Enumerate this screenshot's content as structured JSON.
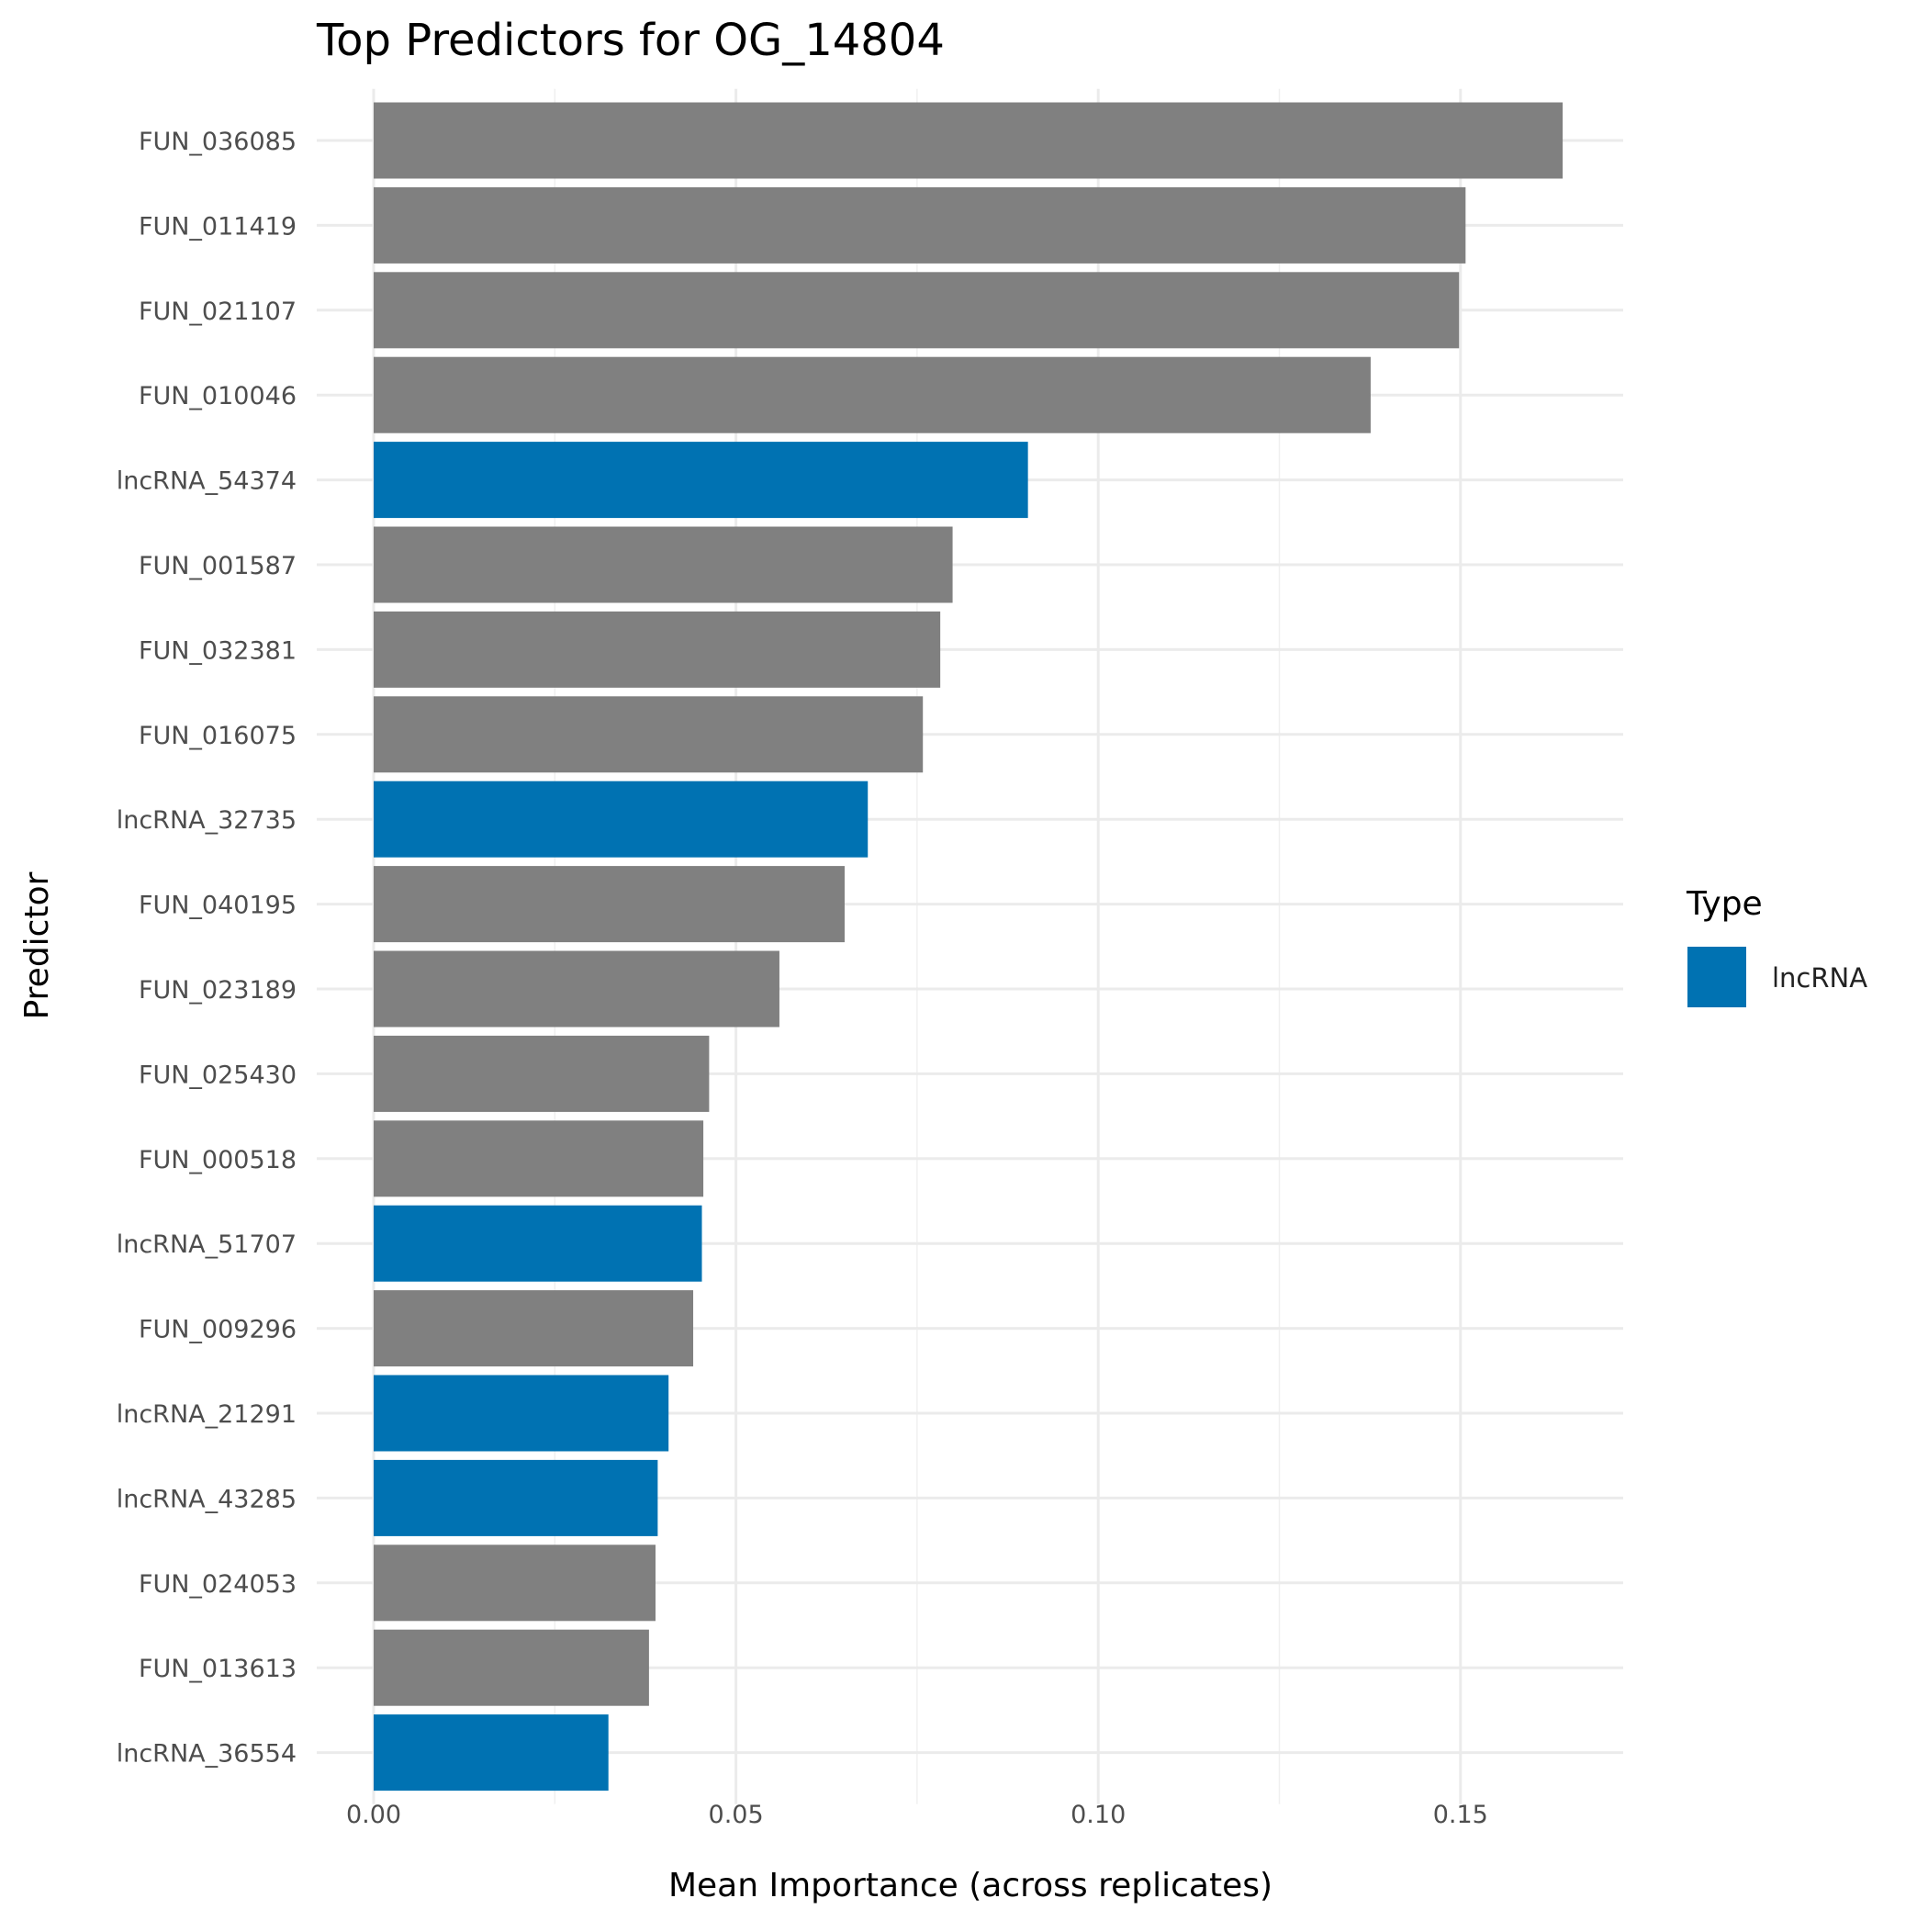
{
  "chart_data": {
    "type": "bar",
    "orientation": "horizontal",
    "title": "Top Predictors for OG_14804",
    "xlabel": "Mean Importance (across replicates)",
    "ylabel": "Predictor",
    "xlim": [
      0,
      0.172
    ],
    "xticks": [
      0.0,
      0.05,
      0.1,
      0.15
    ],
    "xtick_labels": [
      "0.00",
      "0.05",
      "0.10",
      "0.15"
    ],
    "grid": true,
    "legend": {
      "title": "Type",
      "position": "right",
      "entries": [
        {
          "label": "lncRNA",
          "color": "#0072B2"
        }
      ]
    },
    "colors": {
      "lncRNA": "#0072B2",
      "other": "#808080"
    },
    "categories": [
      "FUN_036085",
      "FUN_011419",
      "FUN_021107",
      "FUN_010046",
      "lncRNA_54374",
      "FUN_001587",
      "FUN_032381",
      "FUN_016075",
      "lncRNA_32735",
      "FUN_040195",
      "FUN_023189",
      "FUN_025430",
      "FUN_000518",
      "lncRNA_51707",
      "FUN_009296",
      "lncRNA_21291",
      "lncRNA_43285",
      "FUN_024053",
      "FUN_013613",
      "lncRNA_36554"
    ],
    "values": [
      0.1641,
      0.1507,
      0.1498,
      0.1376,
      0.0903,
      0.0799,
      0.0782,
      0.0758,
      0.0682,
      0.065,
      0.056,
      0.0463,
      0.0455,
      0.0453,
      0.0441,
      0.0407,
      0.0392,
      0.0389,
      0.038,
      0.0324
    ],
    "types": [
      "other",
      "other",
      "other",
      "other",
      "lncRNA",
      "other",
      "other",
      "other",
      "lncRNA",
      "other",
      "other",
      "other",
      "other",
      "lncRNA",
      "other",
      "lncRNA",
      "lncRNA",
      "other",
      "other",
      "lncRNA"
    ]
  }
}
